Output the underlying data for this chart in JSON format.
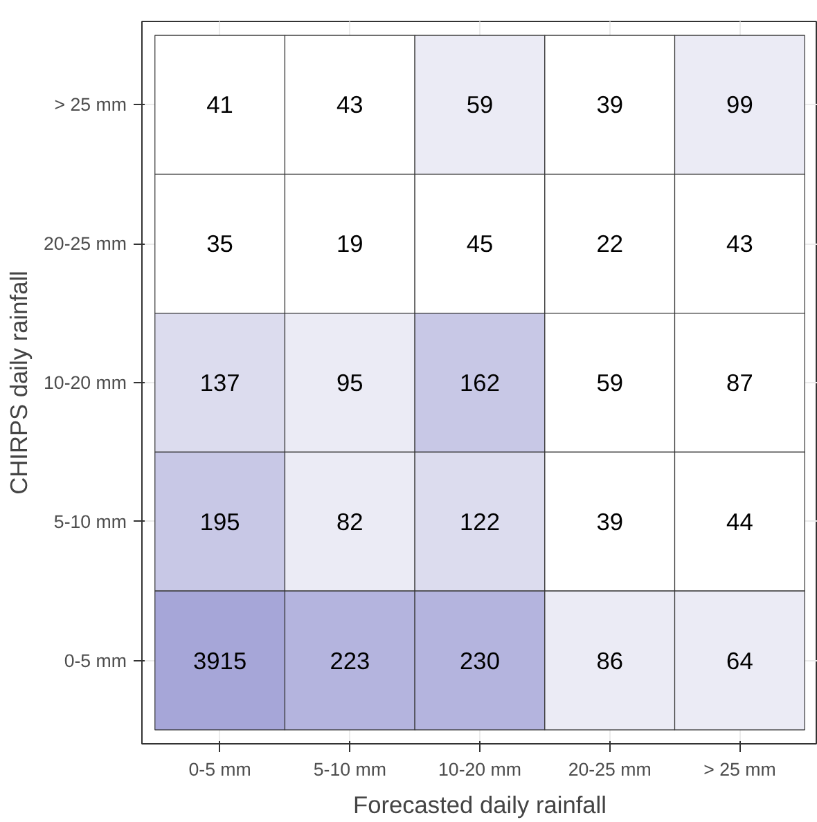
{
  "chart_data": {
    "type": "heatmap",
    "xlabel": "Forecasted daily rainfall",
    "ylabel": "CHIRPS daily rainfall",
    "categories": [
      "0-5 mm",
      "5-10 mm",
      "10-20 mm",
      "20-25 mm",
      "> 25 mm"
    ],
    "y_categories": [
      "> 25 mm",
      "20-25 mm",
      "10-20 mm",
      "5-10 mm",
      "0-5 mm"
    ],
    "cells": [
      [
        41,
        43,
        59,
        39,
        99
      ],
      [
        35,
        19,
        45,
        22,
        43
      ],
      [
        137,
        95,
        162,
        59,
        87
      ],
      [
        195,
        82,
        122,
        39,
        44
      ],
      [
        3915,
        223,
        230,
        86,
        64
      ]
    ],
    "colors": [
      [
        "#ffffff",
        "#ffffff",
        "#ebebf5",
        "#ffffff",
        "#ebebf5"
      ],
      [
        "#ffffff",
        "#ffffff",
        "#ffffff",
        "#ffffff",
        "#ffffff"
      ],
      [
        "#dcdcee",
        "#ebebf5",
        "#c8c8e6",
        "#ffffff",
        "#ffffff"
      ],
      [
        "#c8c8e6",
        "#ebebf5",
        "#dcdcee",
        "#ffffff",
        "#ffffff"
      ],
      [
        "#a6a6d8",
        "#b4b4de",
        "#b4b4de",
        "#ebebf5",
        "#ebebf5"
      ]
    ],
    "data_labels": true,
    "grid": true
  }
}
